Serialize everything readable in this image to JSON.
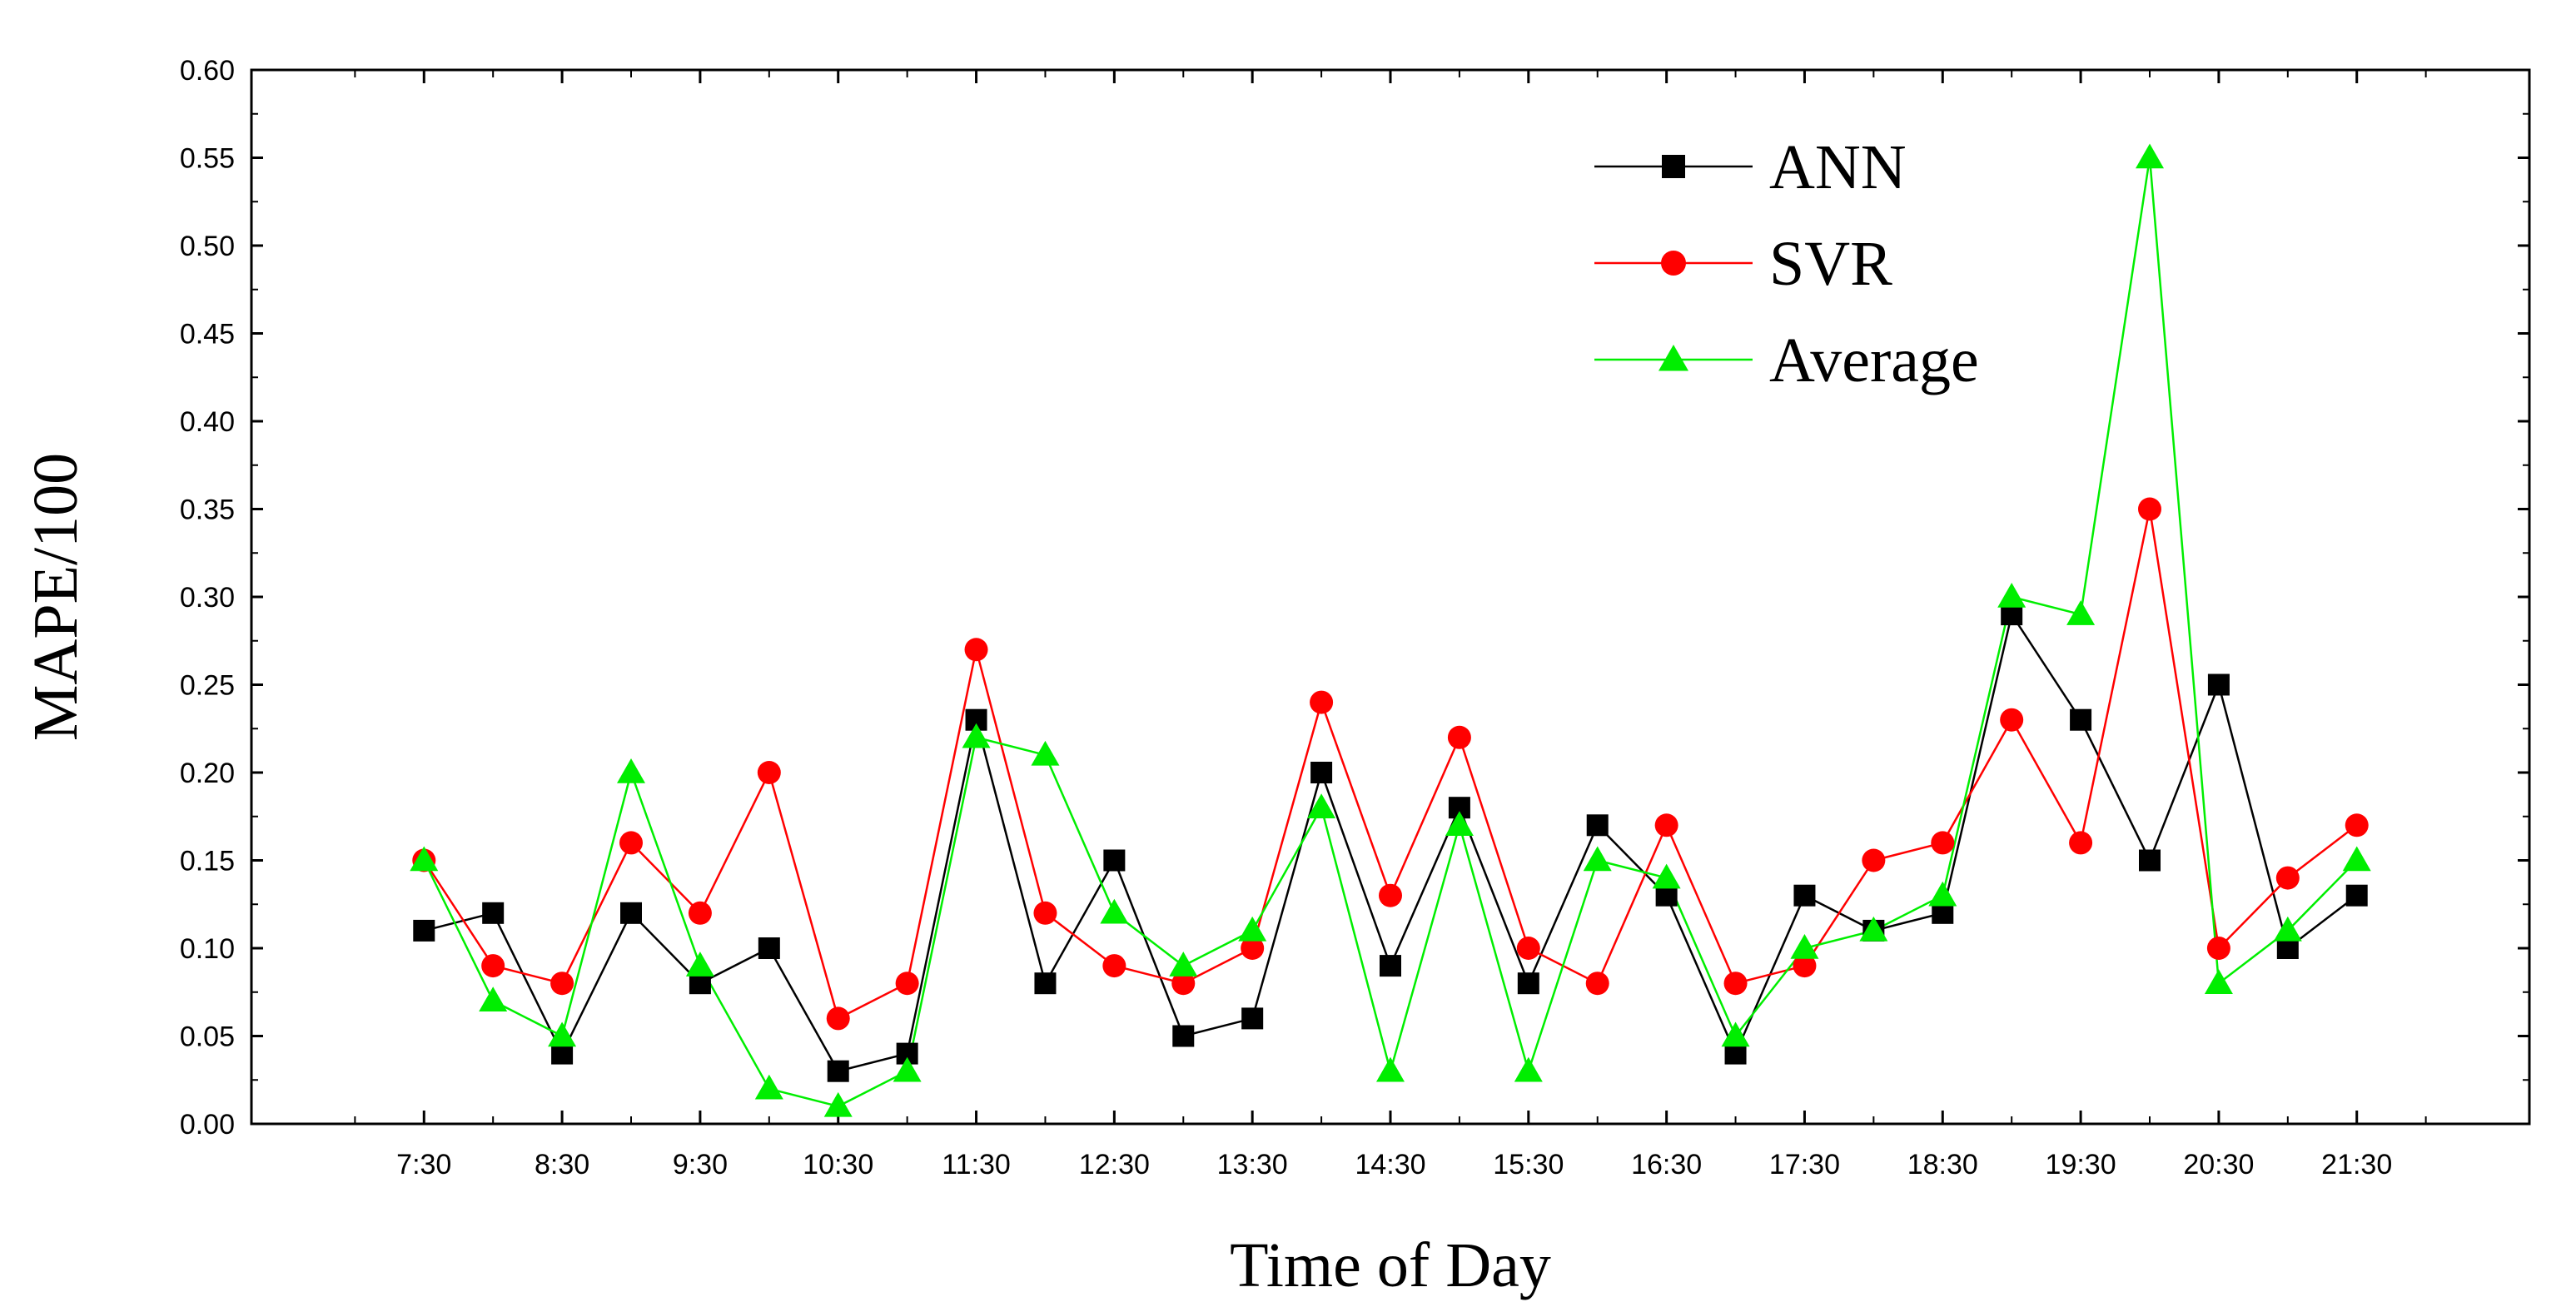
{
  "chart_data": {
    "type": "line",
    "title": "",
    "xlabel": "Time of Day",
    "ylabel": "MAPE/100",
    "ylim": [
      0.0,
      0.6
    ],
    "yticks": [
      "0.00",
      "0.05",
      "0.10",
      "0.15",
      "0.20",
      "0.25",
      "0.30",
      "0.35",
      "0.40",
      "0.45",
      "0.50",
      "0.55",
      "0.60"
    ],
    "xticks": [
      "7:30",
      "8:30",
      "9:30",
      "10:30",
      "11:30",
      "12:30",
      "13:30",
      "14:30",
      "15:30",
      "16:30",
      "17:30",
      "18:30",
      "19:30",
      "20:30",
      "21:30"
    ],
    "x": [
      7.5,
      8.0,
      8.5,
      9.0,
      9.5,
      10.0,
      10.5,
      11.0,
      11.5,
      12.0,
      12.5,
      13.0,
      13.5,
      14.0,
      14.5,
      15.0,
      15.5,
      16.0,
      16.5,
      17.0,
      17.5,
      18.0,
      18.5,
      19.0,
      19.5,
      20.0,
      20.5,
      21.0,
      21.5
    ],
    "xlim": [
      6.25,
      22.75
    ],
    "grid": false,
    "legend_position": "top-right",
    "series": [
      {
        "name": "ANN",
        "color": "#000000",
        "marker": "square",
        "values": [
          0.11,
          0.12,
          0.04,
          0.12,
          0.08,
          0.1,
          0.03,
          0.04,
          0.23,
          0.08,
          0.15,
          0.05,
          0.06,
          0.2,
          0.09,
          0.18,
          0.08,
          0.17,
          0.13,
          0.04,
          0.13,
          0.11,
          0.12,
          0.29,
          0.23,
          0.15,
          0.25,
          0.1,
          0.13
        ]
      },
      {
        "name": "SVR",
        "color": "#ff0000",
        "marker": "circle",
        "values": [
          0.15,
          0.09,
          0.08,
          0.16,
          0.12,
          0.2,
          0.06,
          0.08,
          0.27,
          0.12,
          0.09,
          0.08,
          0.1,
          0.24,
          0.13,
          0.22,
          0.1,
          0.08,
          0.17,
          0.08,
          0.09,
          0.15,
          0.16,
          0.23,
          0.16,
          0.35,
          0.1,
          0.14,
          0.17
        ]
      },
      {
        "name": "Average",
        "color": "#00ee00",
        "marker": "triangle",
        "values": [
          0.15,
          0.07,
          0.05,
          0.2,
          0.09,
          0.02,
          0.01,
          0.03,
          0.22,
          0.21,
          0.12,
          0.09,
          0.11,
          0.18,
          0.03,
          0.17,
          0.03,
          0.15,
          0.14,
          0.05,
          0.1,
          0.11,
          0.13,
          0.3,
          0.29,
          0.55,
          0.08,
          0.11,
          0.15
        ]
      }
    ]
  }
}
